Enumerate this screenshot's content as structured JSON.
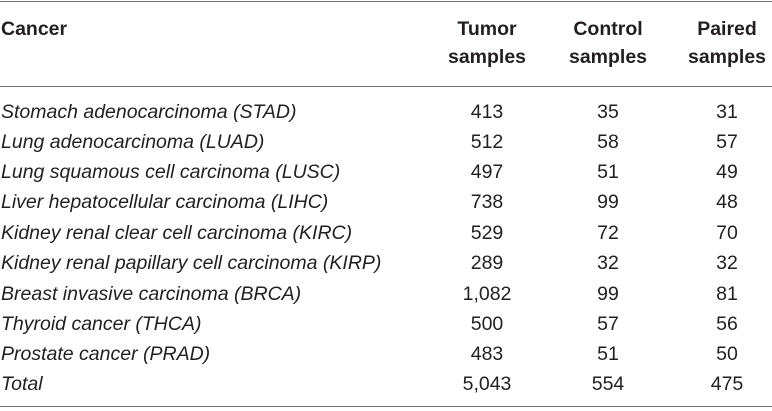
{
  "table": {
    "headers": {
      "cancer": "Cancer",
      "tumor_line1": "Tumor",
      "tumor_line2": "samples",
      "control_line1": "Control",
      "control_line2": "samples",
      "paired_line1": "Paired",
      "paired_line2": "samples"
    },
    "rows": [
      {
        "cancer": "Stomach adenocarcinoma (STAD)",
        "tumor": "413",
        "control": "35",
        "paired": "31"
      },
      {
        "cancer": "Lung adenocarcinoma (LUAD)",
        "tumor": "512",
        "control": "58",
        "paired": "57"
      },
      {
        "cancer": "Lung squamous cell carcinoma (LUSC)",
        "tumor": "497",
        "control": "51",
        "paired": "49"
      },
      {
        "cancer": "Liver hepatocellular carcinoma (LIHC)",
        "tumor": "738",
        "control": "99",
        "paired": "48"
      },
      {
        "cancer": "Kidney renal clear cell carcinoma (KIRC)",
        "tumor": "529",
        "control": "72",
        "paired": "70"
      },
      {
        "cancer": "Kidney renal papillary cell carcinoma (KIRP)",
        "tumor": "289",
        "control": "32",
        "paired": "32"
      },
      {
        "cancer": "Breast invasive carcinoma (BRCA)",
        "tumor": "1,082",
        "control": "99",
        "paired": "81"
      },
      {
        "cancer": "Thyroid cancer (THCA)",
        "tumor": "500",
        "control": "57",
        "paired": "56"
      },
      {
        "cancer": "Prostate cancer (PRAD)",
        "tumor": "483",
        "control": "51",
        "paired": "50"
      },
      {
        "cancer": "Total",
        "tumor": "5,043",
        "control": "554",
        "paired": "475"
      }
    ]
  }
}
